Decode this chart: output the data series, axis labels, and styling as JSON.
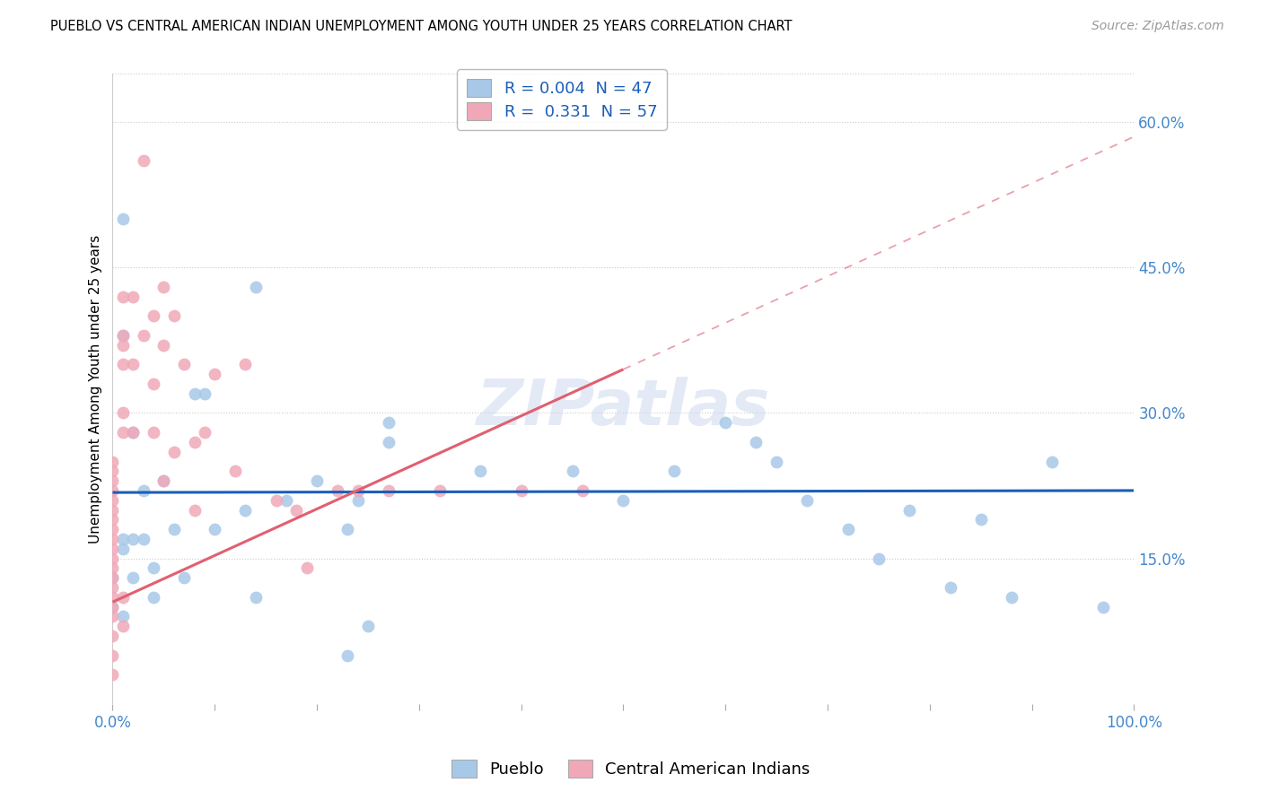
{
  "title": "PUEBLO VS CENTRAL AMERICAN INDIAN UNEMPLOYMENT AMONG YOUTH UNDER 25 YEARS CORRELATION CHART",
  "source": "Source: ZipAtlas.com",
  "ylabel": "Unemployment Among Youth under 25 years",
  "legend_blue_label": "R = 0.004  N = 47",
  "legend_pink_label": "R =  0.331  N = 57",
  "bottom_legend_blue": "Pueblo",
  "bottom_legend_pink": "Central American Indians",
  "blue_scatter_color": "#a8c8e8",
  "pink_scatter_color": "#f0a8b8",
  "blue_trend_color": "#1a5eb8",
  "pink_trend_color": "#e06070",
  "grid_color": "#cccccc",
  "right_tick_color": "#4488cc",
  "bottom_tick_color": "#4488cc",
  "watermark_color": "#ccd9ef",
  "legend_text_color": "#1a5eb8",
  "legend_n_color": "#1a5eb8",
  "pueblo_x": [
    0.01,
    0.01,
    0.02,
    0.03,
    0.04,
    0.05,
    0.07,
    0.08,
    0.09,
    0.1,
    0.13,
    0.14,
    0.17,
    0.2,
    0.23,
    0.24,
    0.27,
    0.27,
    0.36,
    0.45,
    0.5,
    0.55,
    0.6,
    0.63,
    0.65,
    0.68,
    0.72,
    0.75,
    0.78,
    0.82,
    0.85,
    0.88,
    0.92,
    0.97,
    0.14,
    0.25,
    0.01,
    0.02,
    0.03,
    0.06,
    0.01,
    0.01,
    0.04,
    0.02,
    0.23,
    0.0,
    0.0
  ],
  "pueblo_y": [
    0.5,
    0.38,
    0.28,
    0.22,
    0.14,
    0.23,
    0.13,
    0.32,
    0.32,
    0.18,
    0.2,
    0.43,
    0.21,
    0.23,
    0.05,
    0.21,
    0.29,
    0.27,
    0.24,
    0.24,
    0.21,
    0.24,
    0.29,
    0.27,
    0.25,
    0.21,
    0.18,
    0.15,
    0.2,
    0.12,
    0.19,
    0.11,
    0.25,
    0.1,
    0.11,
    0.08,
    0.17,
    0.17,
    0.17,
    0.18,
    0.16,
    0.09,
    0.11,
    0.13,
    0.18,
    0.13,
    0.1
  ],
  "cai_x": [
    0.0,
    0.0,
    0.0,
    0.0,
    0.0,
    0.0,
    0.0,
    0.0,
    0.0,
    0.0,
    0.0,
    0.0,
    0.0,
    0.0,
    0.0,
    0.0,
    0.0,
    0.0,
    0.0,
    0.0,
    0.01,
    0.01,
    0.01,
    0.01,
    0.01,
    0.01,
    0.01,
    0.01,
    0.02,
    0.02,
    0.02,
    0.03,
    0.03,
    0.04,
    0.04,
    0.04,
    0.05,
    0.05,
    0.05,
    0.06,
    0.06,
    0.07,
    0.08,
    0.08,
    0.09,
    0.1,
    0.12,
    0.13,
    0.16,
    0.18,
    0.19,
    0.22,
    0.24,
    0.27,
    0.32,
    0.4,
    0.46
  ],
  "cai_y": [
    0.07,
    0.09,
    0.1,
    0.11,
    0.12,
    0.13,
    0.14,
    0.15,
    0.16,
    0.17,
    0.18,
    0.19,
    0.2,
    0.21,
    0.22,
    0.23,
    0.24,
    0.25,
    0.05,
    0.03,
    0.42,
    0.38,
    0.37,
    0.35,
    0.3,
    0.28,
    0.11,
    0.08,
    0.42,
    0.35,
    0.28,
    0.56,
    0.38,
    0.4,
    0.33,
    0.28,
    0.43,
    0.37,
    0.23,
    0.4,
    0.26,
    0.35,
    0.27,
    0.2,
    0.28,
    0.34,
    0.24,
    0.35,
    0.21,
    0.2,
    0.14,
    0.22,
    0.22,
    0.22,
    0.22,
    0.22,
    0.22
  ],
  "xlim": [
    0.0,
    1.0
  ],
  "ylim": [
    0.0,
    0.65
  ],
  "ytick_positions": [
    0.15,
    0.3,
    0.45,
    0.6
  ],
  "ytick_labels": [
    "15.0%",
    "30.0%",
    "45.0%",
    "60.0%"
  ],
  "xtick_positions": [
    0.0,
    0.1,
    0.2,
    0.3,
    0.4,
    0.5,
    0.6,
    0.7,
    0.8,
    0.9,
    1.0
  ],
  "blue_trend_y_intercept": 0.218,
  "blue_trend_slope": 0.002,
  "pink_trend_y_intercept": 0.105,
  "pink_trend_slope": 0.48
}
